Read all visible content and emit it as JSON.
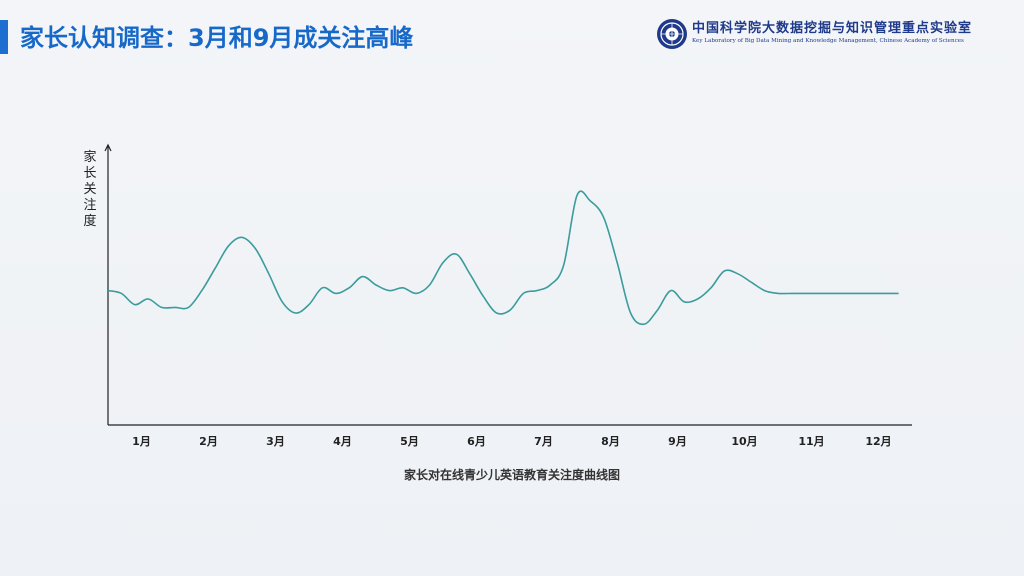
{
  "slide": {
    "title": "家长认知调查：3月和9月成关注高峰",
    "org_name": "中国科学院大数据挖掘与知识管理重点实验室",
    "org_name_en": "Key Laboratory of Big Data Mining and Knowledge Management, Chinese Academy of Sciences",
    "logo_icon": "cas-emblem-icon",
    "accent_color": "#1c6fd0"
  },
  "chart_data": {
    "type": "line",
    "title": "家长对在线青少儿英语教育关注度曲线图",
    "xlabel": "",
    "ylabel": "家长关注度",
    "categories": [
      "1月",
      "2月",
      "3月",
      "4月",
      "5月",
      "6月",
      "7月",
      "8月",
      "9月",
      "10月",
      "11月",
      "12月"
    ],
    "x_range": [
      0.5,
      12.5
    ],
    "ylim": [
      0,
      100
    ],
    "grid": false,
    "line_color": "#3a9c9c",
    "series": [
      {
        "x": [
          0.5,
          0.7,
          0.9,
          1.1,
          1.3,
          1.5,
          1.7,
          1.9,
          2.1,
          2.3,
          2.5,
          2.7,
          2.9,
          3.1,
          3.3,
          3.5,
          3.7,
          3.9,
          4.1,
          4.3,
          4.5,
          4.7,
          4.9,
          5.1,
          5.3,
          5.5,
          5.7,
          5.9,
          6.1,
          6.3,
          6.5,
          6.7,
          6.9,
          7.1,
          7.3,
          7.5,
          7.7,
          7.9,
          8.1,
          8.3,
          8.5,
          8.7,
          8.9,
          9.1,
          9.3,
          9.5,
          9.7,
          9.9,
          10.1,
          10.3,
          10.5,
          10.7,
          10.9,
          11.1,
          11.3,
          11.5,
          11.7,
          11.9,
          12.1,
          12.3
        ],
        "values": [
          48,
          47,
          43,
          45,
          42,
          42,
          42,
          48,
          56,
          64,
          67,
          63,
          54,
          44,
          40,
          43,
          49,
          47,
          49,
          53,
          50,
          48,
          49,
          47,
          50,
          58,
          61,
          54,
          46,
          40,
          41,
          47,
          48,
          50,
          57,
          82,
          80,
          74,
          58,
          40,
          36,
          41,
          48,
          44,
          45,
          49,
          55,
          54,
          51,
          48,
          47,
          47,
          47,
          47,
          47,
          47,
          47,
          47,
          47,
          47
        ]
      }
    ]
  }
}
